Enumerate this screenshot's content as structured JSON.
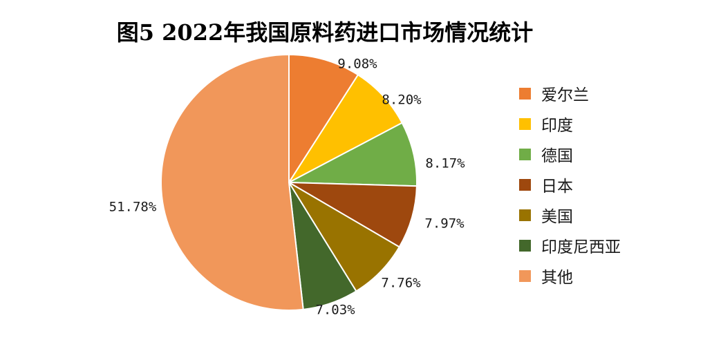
{
  "chart_data": {
    "type": "pie",
    "title": "图5 2022年我国原料药进口市场情况统计",
    "legend_position": "right",
    "slices": [
      {
        "name": "爱尔兰",
        "value": 9.08,
        "label": "9.08%",
        "color": "#ED7D31"
      },
      {
        "name": "印度",
        "value": 8.2,
        "label": "8.20%",
        "color": "#FFC000"
      },
      {
        "name": "德国",
        "value": 8.17,
        "label": "8.17%",
        "color": "#70AD47"
      },
      {
        "name": "日本",
        "value": 7.97,
        "label": "7.97%",
        "color": "#9E480E"
      },
      {
        "name": "美国",
        "value": 7.76,
        "label": "7.76%",
        "color": "#997300"
      },
      {
        "name": "印度尼西亚",
        "value": 7.03,
        "label": "7.03%",
        "color": "#43682B"
      },
      {
        "name": "其他",
        "value": 51.78,
        "label": "51.78%",
        "color": "#F1975A"
      }
    ]
  }
}
